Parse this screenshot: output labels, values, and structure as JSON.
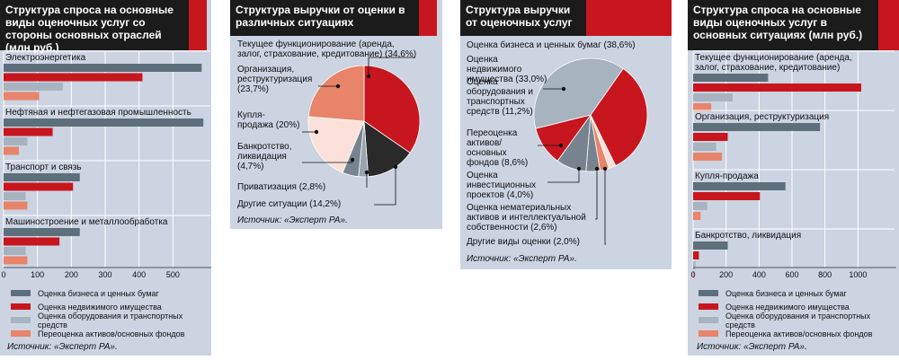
{
  "colors": {
    "business": "#5e6f7c",
    "realestate": "#c8161e",
    "equipment": "#a7b3bf",
    "revaluation": "#e8846a",
    "other": "#2a2a2a",
    "buysell": "#fbe1d9",
    "bankruptcy": "#77848f",
    "privatization": "#98a4af"
  },
  "panel1": {
    "title": "Структура спроса на основные виды оценочных услуг со стороны основных отраслей (млн руб.)",
    "source": "Источник: «Эксперт РА».",
    "legend": [
      {
        "label": "Оценка бизнеса и ценных бумаг",
        "color": "#5e6f7c"
      },
      {
        "label": "Оценка недвижимого имущества",
        "color": "#c8161e"
      },
      {
        "label": "Оценка оборудования и транспортных средств",
        "color": "#a7b3bf"
      },
      {
        "label": "Переоценка активов/основных фондов",
        "color": "#e8846a"
      }
    ]
  },
  "panel2": {
    "title": "Структура выручки от оценки в различных ситуациях",
    "source": "Источник: «Эксперт РА».",
    "labels": [
      "Текущее функционирование (аренда, залог, страхование, кредитование) (34,6%)",
      "Организация, реструктуризация (23,7%)",
      "Купля-продажа (20%)",
      "Банкротство, ликвидация (4,7%)",
      "Приватизация (2,8%)",
      "Другие ситуации (14,2%)"
    ]
  },
  "panel3": {
    "title": "Структура выручки от оценочных услуг",
    "source": "Источник: «Эксперт РА».",
    "labels": [
      "Оценка бизнеса и ценных бумаг (38,6%)",
      "Оценка недвижимого имущества (33,0%)",
      "Оценка оборудования и транспортных средств (11,2%)",
      "Переоценка активов/основных фондов (8,6%)",
      "Оценка инвестиционных проектов (4,0%)",
      "Оценка нематериальных активов и интеллектуальной собственности (2,6%)",
      "Другие виды оценки (2,0%)"
    ]
  },
  "panel4": {
    "title": "Структура спроса на основные виды оценочных услуг в основных ситуациях (млн руб.)",
    "source": "Источник: «Эксперт РА».",
    "legend": [
      {
        "label": "Оценка бизнеса и ценных бумаг",
        "color": "#5e6f7c"
      },
      {
        "label": "Оценка недвижимого имущества",
        "color": "#c8161e"
      },
      {
        "label": "Оценка оборудования и транспортных средств",
        "color": "#a7b3bf"
      },
      {
        "label": "Переоценка активов/основных фондов",
        "color": "#e8846a"
      }
    ]
  },
  "chart_data": [
    {
      "type": "bar",
      "orientation": "horizontal",
      "categories": [
        "Электроэнергетика",
        "Нефтяная и нефтегазовая промышленность",
        "Транспорт и связь",
        "Машиностроение и металлообработка"
      ],
      "series": [
        {
          "name": "Оценка бизнеса и ценных бумаг",
          "values": [
            585,
            590,
            225,
            225
          ]
        },
        {
          "name": "Оценка недвижимого имущества",
          "values": [
            410,
            145,
            205,
            165
          ]
        },
        {
          "name": "Оценка оборудования и транспортных средств",
          "values": [
            175,
            70,
            65,
            65
          ]
        },
        {
          "name": "Переоценка активов/основных фондов",
          "values": [
            105,
            45,
            70,
            70
          ]
        }
      ],
      "xlim": [
        0,
        600
      ],
      "xticks": [
        "0",
        "100",
        "200",
        "300",
        "400",
        "500"
      ]
    },
    {
      "type": "pie",
      "labels": [
        "Текущее функционирование (аренда, залог, страхование, кредитование)",
        "Другие ситуации",
        "Приватизация",
        "Банкротство, ликвидация",
        "Купля-продажа",
        "Организация, реструктуризация"
      ],
      "values": [
        34.6,
        14.2,
        2.8,
        4.7,
        20.0,
        23.7
      ]
    },
    {
      "type": "pie",
      "labels": [
        "Оценка недвижимого имущества",
        "Другие виды оценки",
        "Оценка нематериальных активов и интеллектуальной собственности",
        "Оценка инвестиционных проектов",
        "Переоценка активов/основных фондов",
        "Оценка оборудования и транспортных средств",
        "Оценка бизнеса и ценных бумаг"
      ],
      "values": [
        33.0,
        2.0,
        2.6,
        4.0,
        8.6,
        11.2,
        38.6
      ]
    },
    {
      "type": "bar",
      "orientation": "horizontal",
      "categories": [
        "Текущее функционирование (аренда, залог, страхование, кредитование)",
        "Организация, реструктуризация",
        "Купля-продажа",
        "Банкротство, ликвидация"
      ],
      "series": [
        {
          "name": "Оценка бизнеса и ценных бумаг",
          "values": [
            455,
            770,
            560,
            210
          ]
        },
        {
          "name": "Оценка недвижимого имущества",
          "values": [
            1020,
            210,
            405,
            35
          ]
        },
        {
          "name": "Оценка оборудования и транспортных средств",
          "values": [
            240,
            140,
            85,
            15
          ]
        },
        {
          "name": "Переоценка активов/основных фондов",
          "values": [
            110,
            175,
            45,
            5
          ]
        }
      ],
      "xlim": [
        0,
        1200
      ],
      "xticks": [
        "0",
        "200",
        "400",
        "600",
        "800",
        "1000"
      ]
    }
  ]
}
